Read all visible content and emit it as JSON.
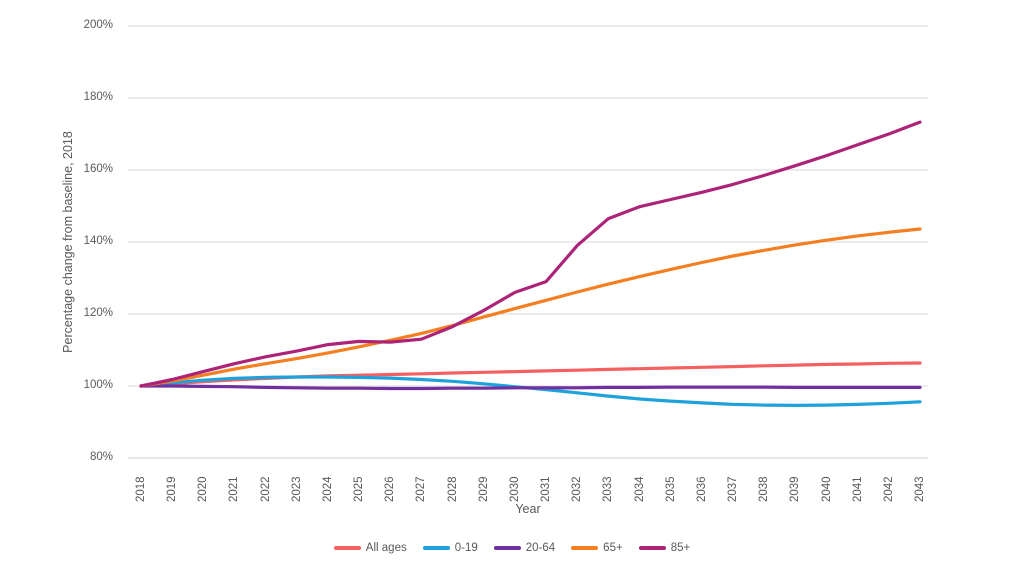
{
  "chart_data": {
    "type": "line",
    "title": "",
    "xlabel": "Year",
    "ylabel": "Percentage change from baseline, 2018",
    "x": [
      2018,
      2019,
      2020,
      2021,
      2022,
      2023,
      2024,
      2025,
      2026,
      2027,
      2028,
      2029,
      2030,
      2031,
      2032,
      2033,
      2034,
      2035,
      2036,
      2037,
      2038,
      2039,
      2040,
      2041,
      2042,
      2043
    ],
    "ylim": [
      80,
      200
    ],
    "y_ticks": [
      80,
      100,
      120,
      140,
      160,
      180,
      200
    ],
    "y_tick_suffix": "%",
    "grid": "horizontal",
    "legend_position": "bottom",
    "series": [
      {
        "name": "All ages",
        "color": "#F4605F",
        "values": [
          100,
          100.6,
          101.2,
          101.7,
          102.1,
          102.5,
          102.8,
          103.0,
          103.2,
          103.4,
          103.6,
          103.8,
          104.0,
          104.2,
          104.4,
          104.6,
          104.8,
          105.0,
          105.2,
          105.4,
          105.6,
          105.8,
          106.0,
          106.1,
          106.3,
          106.4
        ]
      },
      {
        "name": "0-19",
        "color": "#1EA2DC",
        "values": [
          100,
          100.9,
          101.6,
          102.1,
          102.4,
          102.5,
          102.5,
          102.4,
          102.2,
          101.8,
          101.3,
          100.6,
          99.8,
          99.0,
          98.1,
          97.2,
          96.4,
          95.8,
          95.3,
          94.9,
          94.7,
          94.6,
          94.7,
          94.9,
          95.2,
          95.6
        ]
      },
      {
        "name": "20-64",
        "color": "#7030A0",
        "values": [
          100,
          100.0,
          99.9,
          99.8,
          99.6,
          99.5,
          99.4,
          99.4,
          99.3,
          99.3,
          99.4,
          99.4,
          99.5,
          99.5,
          99.5,
          99.6,
          99.6,
          99.7,
          99.7,
          99.7,
          99.7,
          99.6,
          99.6,
          99.6,
          99.6,
          99.6
        ]
      },
      {
        "name": "65+",
        "color": "#F57E20",
        "values": [
          100,
          101.4,
          103.0,
          104.7,
          106.2,
          107.6,
          109.2,
          110.9,
          112.7,
          114.6,
          116.8,
          119.2,
          121.5,
          123.8,
          126.1,
          128.3,
          130.4,
          132.4,
          134.3,
          136.1,
          137.7,
          139.2,
          140.5,
          141.7,
          142.7,
          143.6
        ]
      },
      {
        "name": "85+",
        "color": "#AC2377",
        "values": [
          100,
          101.8,
          104.0,
          106.2,
          108.1,
          109.7,
          111.5,
          112.4,
          112.2,
          113.0,
          116.5,
          121.0,
          126.0,
          129.0,
          139.0,
          146.5,
          149.8,
          151.8,
          153.8,
          156.0,
          158.5,
          161.2,
          164.0,
          167.0,
          170.0,
          173.3
        ]
      }
    ]
  },
  "colors": {
    "grid": "#D9D9D9",
    "axis_line": "#D0D0D0",
    "axis_text": "#595959",
    "background": "#FFFFFF"
  }
}
